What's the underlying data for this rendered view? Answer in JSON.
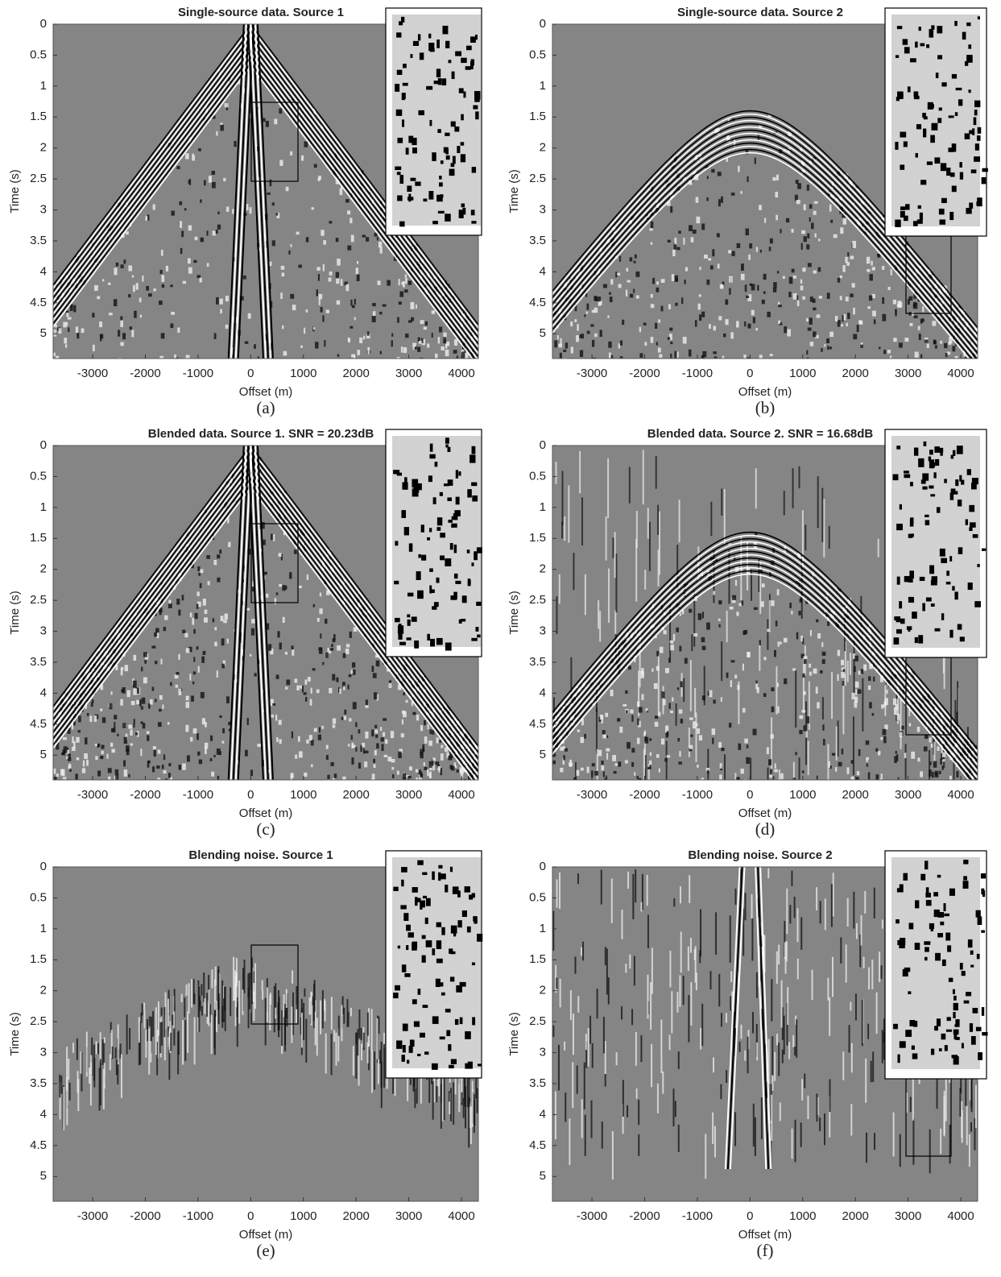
{
  "chart_data": [
    {
      "type": "seismic",
      "title": "Single-source data. Source 1",
      "xlabel": "Offset (m)",
      "ylabel": "Time (s)",
      "caption": "(a)",
      "xlim": [
        -3750,
        4320
      ],
      "ylim": [
        0,
        5.4
      ],
      "yreverse": true,
      "xticks": [
        -3000,
        -2000,
        -1000,
        0,
        1000,
        2000,
        3000,
        4000
      ],
      "yticks": [
        0,
        0.5,
        1,
        1.5,
        2,
        2.5,
        3,
        3.5,
        4,
        4.5,
        5
      ]
    },
    {
      "type": "seismic",
      "title": "Single-source data. Source 2",
      "xlabel": "Offset (m)",
      "ylabel": "Time (s)",
      "caption": "(b)",
      "xlim": [
        -3750,
        4320
      ],
      "ylim": [
        0,
        5.4
      ],
      "yreverse": true,
      "xticks": [
        -3000,
        -2000,
        -1000,
        0,
        1000,
        2000,
        3000,
        4000
      ],
      "yticks": [
        0,
        0.5,
        1,
        1.5,
        2,
        2.5,
        3,
        3.5,
        4,
        4.5,
        5
      ]
    },
    {
      "type": "seismic",
      "title": "Blended data. Source 1. SNR = 20.23dB",
      "xlabel": "Offset (m)",
      "ylabel": "Time (s)",
      "caption": "(c)",
      "xlim": [
        -3750,
        4320
      ],
      "ylim": [
        0,
        5.4
      ],
      "yreverse": true,
      "xticks": [
        -3000,
        -2000,
        -1000,
        0,
        1000,
        2000,
        3000,
        4000
      ],
      "yticks": [
        0,
        0.5,
        1,
        1.5,
        2,
        2.5,
        3,
        3.5,
        4,
        4.5,
        5
      ]
    },
    {
      "type": "seismic",
      "title": "Blended data. Source 2. SNR = 16.68dB",
      "xlabel": "Offset (m)",
      "ylabel": "Time (s)",
      "caption": "(d)",
      "xlim": [
        -3750,
        4320
      ],
      "ylim": [
        0,
        5.4
      ],
      "yreverse": true,
      "xticks": [
        -3000,
        -2000,
        -1000,
        0,
        1000,
        2000,
        3000,
        4000
      ],
      "yticks": [
        0,
        0.5,
        1,
        1.5,
        2,
        2.5,
        3,
        3.5,
        4,
        4.5,
        5
      ]
    },
    {
      "type": "seismic",
      "title": "Blending noise. Source 1",
      "xlabel": "Offset (m)",
      "ylabel": "Time (s)",
      "caption": "(e)",
      "xlim": [
        -3750,
        4320
      ],
      "ylim": [
        0,
        5.4
      ],
      "yreverse": true,
      "xticks": [
        -3000,
        -2000,
        -1000,
        0,
        1000,
        2000,
        3000,
        4000
      ],
      "yticks": [
        0,
        0.5,
        1,
        1.5,
        2,
        2.5,
        3,
        3.5,
        4,
        4.5,
        5
      ]
    },
    {
      "type": "seismic",
      "title": "Blending noise. Source 2",
      "xlabel": "Offset (m)",
      "ylabel": "Time (s)",
      "caption": "(f)",
      "xlim": [
        -3750,
        4320
      ],
      "ylim": [
        0,
        5.4
      ],
      "yreverse": true,
      "xticks": [
        -3000,
        -2000,
        -1000,
        0,
        1000,
        2000,
        3000,
        4000
      ],
      "yticks": [
        0,
        0.5,
        1,
        1.5,
        2,
        2.5,
        3,
        3.5,
        4,
        4.5,
        5
      ]
    }
  ]
}
